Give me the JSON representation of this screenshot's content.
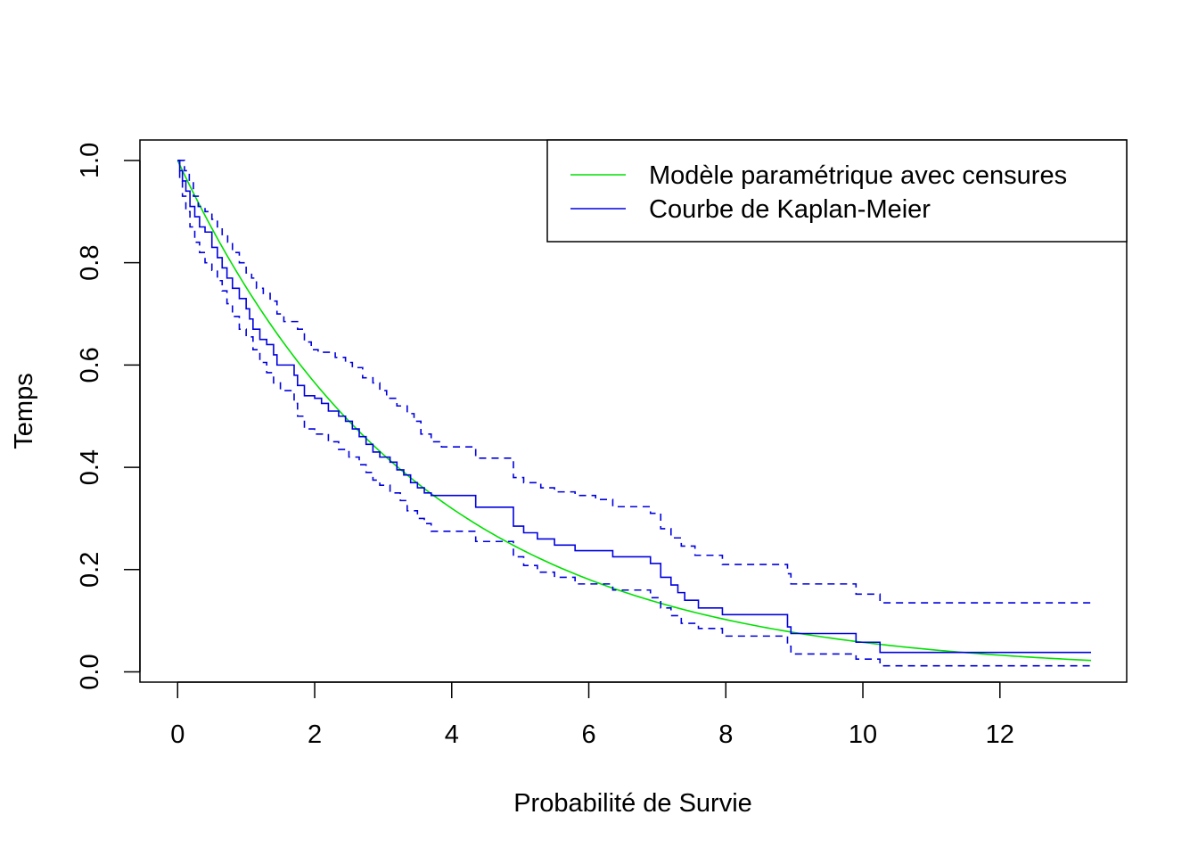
{
  "chart_data": {
    "type": "line",
    "title": "",
    "xlabel": "Probabilité de Survie",
    "ylabel": "Temps",
    "xlim": [
      -0.55,
      13.85
    ],
    "ylim": [
      -0.02,
      1.04
    ],
    "x_ticks": [
      0,
      2,
      4,
      6,
      8,
      10,
      12
    ],
    "y_ticks": [
      0.0,
      0.2,
      0.4,
      0.6,
      0.8,
      1.0
    ],
    "x_tick_labels": [
      "0",
      "2",
      "4",
      "6",
      "8",
      "10",
      "12"
    ],
    "y_tick_labels": [
      "0.0",
      "0.2",
      "0.4",
      "0.6",
      "0.8",
      "1.0"
    ],
    "grid": false,
    "legend_position": "top-right",
    "legend": [
      {
        "label": "Modèle paramétrique avec censures",
        "color": "#00e000",
        "style": "solid"
      },
      {
        "label": "Courbe de Kaplan-Meier",
        "color": "#0000e0",
        "style": "solid"
      }
    ],
    "series": [
      {
        "name": "Modèle paramétrique avec censures",
        "kind": "curve",
        "color": "#00e000",
        "rate": 0.285,
        "x_range": [
          0,
          13.33
        ]
      },
      {
        "name": "Courbe de Kaplan-Meier",
        "kind": "step",
        "color": "#0000e0",
        "style": "solid",
        "points": [
          [
            0,
            1.0
          ],
          [
            0.03,
            0.98
          ],
          [
            0.07,
            0.96
          ],
          [
            0.12,
            0.94
          ],
          [
            0.18,
            0.91
          ],
          [
            0.25,
            0.89
          ],
          [
            0.32,
            0.87
          ],
          [
            0.4,
            0.86
          ],
          [
            0.5,
            0.83
          ],
          [
            0.58,
            0.81
          ],
          [
            0.65,
            0.79
          ],
          [
            0.72,
            0.77
          ],
          [
            0.8,
            0.75
          ],
          [
            0.9,
            0.73
          ],
          [
            1.0,
            0.71
          ],
          [
            1.05,
            0.69
          ],
          [
            1.1,
            0.67
          ],
          [
            1.2,
            0.65
          ],
          [
            1.3,
            0.64
          ],
          [
            1.4,
            0.62
          ],
          [
            1.45,
            0.6
          ],
          [
            1.7,
            0.58
          ],
          [
            1.75,
            0.56
          ],
          [
            1.85,
            0.54
          ],
          [
            2.0,
            0.535
          ],
          [
            2.1,
            0.525
          ],
          [
            2.2,
            0.51
          ],
          [
            2.35,
            0.5
          ],
          [
            2.45,
            0.49
          ],
          [
            2.55,
            0.475
          ],
          [
            2.65,
            0.46
          ],
          [
            2.75,
            0.445
          ],
          [
            2.85,
            0.43
          ],
          [
            2.95,
            0.42
          ],
          [
            3.1,
            0.41
          ],
          [
            3.2,
            0.395
          ],
          [
            3.3,
            0.385
          ],
          [
            3.4,
            0.37
          ],
          [
            3.5,
            0.36
          ],
          [
            3.6,
            0.35
          ],
          [
            3.7,
            0.345
          ],
          [
            4.35,
            0.322
          ],
          [
            4.9,
            0.285
          ],
          [
            5.05,
            0.272
          ],
          [
            5.25,
            0.26
          ],
          [
            5.5,
            0.248
          ],
          [
            5.8,
            0.237
          ],
          [
            6.35,
            0.225
          ],
          [
            6.9,
            0.212
          ],
          [
            7.05,
            0.185
          ],
          [
            7.2,
            0.17
          ],
          [
            7.3,
            0.155
          ],
          [
            7.4,
            0.14
          ],
          [
            7.6,
            0.125
          ],
          [
            7.95,
            0.112
          ],
          [
            8.9,
            0.088
          ],
          [
            8.95,
            0.075
          ],
          [
            9.9,
            0.058
          ],
          [
            10.25,
            0.038
          ],
          [
            13.33,
            0.038
          ]
        ]
      },
      {
        "name": "",
        "kind": "step",
        "color": "#0000e0",
        "style": "dashed",
        "points": [
          [
            0,
            1.0
          ],
          [
            0.05,
            1.0
          ],
          [
            0.1,
            0.98
          ],
          [
            0.17,
            0.96
          ],
          [
            0.23,
            0.93
          ],
          [
            0.3,
            0.91
          ],
          [
            0.4,
            0.9
          ],
          [
            0.5,
            0.885
          ],
          [
            0.58,
            0.87
          ],
          [
            0.65,
            0.855
          ],
          [
            0.73,
            0.84
          ],
          [
            0.8,
            0.82
          ],
          [
            0.9,
            0.8
          ],
          [
            1.0,
            0.78
          ],
          [
            1.08,
            0.77
          ],
          [
            1.15,
            0.75
          ],
          [
            1.25,
            0.74
          ],
          [
            1.35,
            0.725
          ],
          [
            1.45,
            0.7
          ],
          [
            1.55,
            0.685
          ],
          [
            1.75,
            0.67
          ],
          [
            1.85,
            0.645
          ],
          [
            1.95,
            0.63
          ],
          [
            2.05,
            0.625
          ],
          [
            2.3,
            0.615
          ],
          [
            2.45,
            0.605
          ],
          [
            2.55,
            0.595
          ],
          [
            2.7,
            0.575
          ],
          [
            2.85,
            0.565
          ],
          [
            2.95,
            0.55
          ],
          [
            3.05,
            0.535
          ],
          [
            3.2,
            0.52
          ],
          [
            3.35,
            0.505
          ],
          [
            3.45,
            0.49
          ],
          [
            3.55,
            0.465
          ],
          [
            3.7,
            0.45
          ],
          [
            3.85,
            0.44
          ],
          [
            4.35,
            0.418
          ],
          [
            4.9,
            0.38
          ],
          [
            5.05,
            0.37
          ],
          [
            5.3,
            0.36
          ],
          [
            5.5,
            0.352
          ],
          [
            5.8,
            0.345
          ],
          [
            6.1,
            0.337
          ],
          [
            6.35,
            0.323
          ],
          [
            6.9,
            0.31
          ],
          [
            7.05,
            0.28
          ],
          [
            7.2,
            0.262
          ],
          [
            7.35,
            0.246
          ],
          [
            7.55,
            0.228
          ],
          [
            7.95,
            0.21
          ],
          [
            8.9,
            0.192
          ],
          [
            8.95,
            0.172
          ],
          [
            9.9,
            0.152
          ],
          [
            10.25,
            0.135
          ],
          [
            13.33,
            0.135
          ]
        ]
      },
      {
        "name": "",
        "kind": "step",
        "color": "#0000e0",
        "style": "dashed",
        "points": [
          [
            0,
            1.0
          ],
          [
            0.03,
            0.96
          ],
          [
            0.07,
            0.93
          ],
          [
            0.12,
            0.9
          ],
          [
            0.18,
            0.87
          ],
          [
            0.25,
            0.84
          ],
          [
            0.32,
            0.82
          ],
          [
            0.4,
            0.8
          ],
          [
            0.5,
            0.785
          ],
          [
            0.58,
            0.765
          ],
          [
            0.65,
            0.745
          ],
          [
            0.72,
            0.72
          ],
          [
            0.8,
            0.695
          ],
          [
            0.9,
            0.67
          ],
          [
            1.0,
            0.655
          ],
          [
            1.1,
            0.63
          ],
          [
            1.2,
            0.605
          ],
          [
            1.3,
            0.585
          ],
          [
            1.4,
            0.565
          ],
          [
            1.5,
            0.55
          ],
          [
            1.7,
            0.525
          ],
          [
            1.75,
            0.5
          ],
          [
            1.85,
            0.475
          ],
          [
            2.0,
            0.465
          ],
          [
            2.2,
            0.45
          ],
          [
            2.35,
            0.435
          ],
          [
            2.5,
            0.42
          ],
          [
            2.65,
            0.405
          ],
          [
            2.75,
            0.39
          ],
          [
            2.85,
            0.375
          ],
          [
            2.95,
            0.365
          ],
          [
            3.1,
            0.35
          ],
          [
            3.25,
            0.335
          ],
          [
            3.35,
            0.315
          ],
          [
            3.5,
            0.3
          ],
          [
            3.6,
            0.29
          ],
          [
            3.7,
            0.275
          ],
          [
            4.35,
            0.255
          ],
          [
            4.9,
            0.225
          ],
          [
            5.05,
            0.208
          ],
          [
            5.25,
            0.195
          ],
          [
            5.5,
            0.185
          ],
          [
            5.8,
            0.172
          ],
          [
            6.35,
            0.16
          ],
          [
            6.9,
            0.145
          ],
          [
            7.05,
            0.125
          ],
          [
            7.2,
            0.11
          ],
          [
            7.35,
            0.095
          ],
          [
            7.6,
            0.085
          ],
          [
            7.95,
            0.07
          ],
          [
            8.9,
            0.05
          ],
          [
            8.95,
            0.035
          ],
          [
            9.9,
            0.025
          ],
          [
            10.25,
            0.012
          ],
          [
            13.33,
            0.012
          ]
        ]
      }
    ]
  }
}
